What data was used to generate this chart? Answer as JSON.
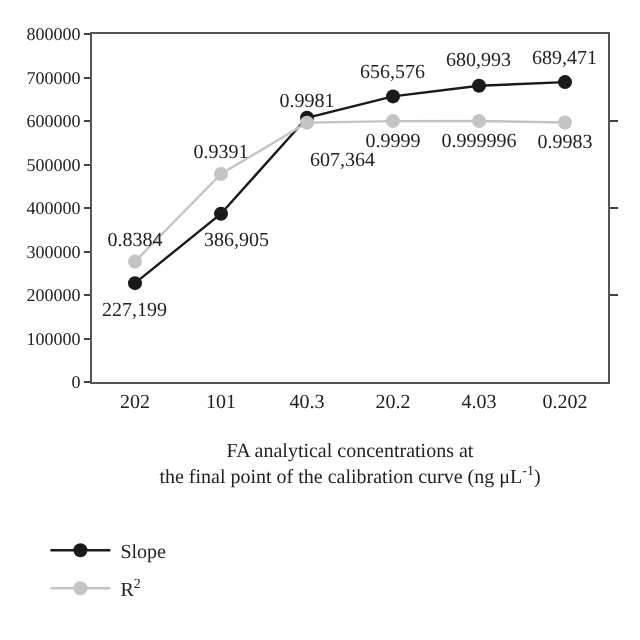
{
  "chart_data": {
    "type": "line",
    "xlabel": "FA analytical concentrations at\nthe final point of the calibration curve (ng μL$^{-1}$)",
    "categories": [
      "202",
      "101",
      "40.3",
      "20.2",
      "4.03",
      "0.202"
    ],
    "series": [
      {
        "name": "Slope",
        "color": "#1a1a1a",
        "values": [
          227199,
          386905,
          607364,
          656576,
          680993,
          689471
        ],
        "value_labels": [
          "227,199",
          "386,905",
          "607,364",
          "656,576",
          "680,993",
          "689,471"
        ]
      },
      {
        "name": "R$^{2}$",
        "color": "#c4c4c4",
        "axis": "y2",
        "values": [
          0.8384,
          0.9391,
          0.9981,
          0.9999,
          0.999996,
          0.9983
        ],
        "value_labels": [
          "0.8384",
          "0.9391",
          "0.9981",
          "0.9999",
          "0.999996",
          "0.9983"
        ]
      }
    ],
    "ylim": [
      0,
      800000
    ],
    "yticks": [
      0,
      100000,
      200000,
      300000,
      400000,
      500000,
      600000,
      700000,
      800000
    ],
    "y2lim": [
      0.7,
      1.1
    ],
    "y2ticks": [
      {
        "value": 0.8,
        "label": null
      },
      {
        "value": 0.9,
        "label": null
      },
      {
        "value": 1.0,
        "label": null
      }
    ],
    "tick_labels": "xy",
    "marker": "circle",
    "line_style": "solid",
    "legend": "bottom left"
  }
}
